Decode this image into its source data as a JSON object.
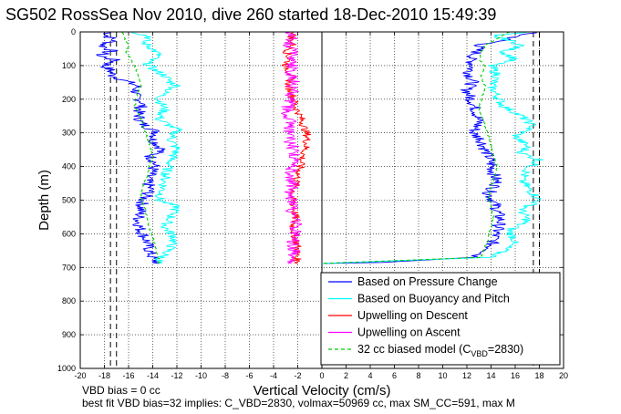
{
  "colors": {
    "pressure": "#0000ff",
    "buoyancy": "#00ffff",
    "descent": "#ff0000",
    "ascent": "#ff00ff",
    "model": "#00cc00",
    "axis": "#000000",
    "grid": "#000000"
  },
  "notes": {
    "bias": "VBD bias = 0 cc",
    "fit": "best fit VBD bias=32 implies: C_VBD=2830, volmax=50969 cc, max SM_CC=591, max M"
  },
  "chart_data": {
    "type": "line",
    "title": "SG502 RossSea Nov 2010, dive 260 started 18-Dec-2010 15:49:39",
    "xlabel": "Vertical Velocity (cm/s)",
    "ylabel": "Depth (m)",
    "xlim": [
      -20,
      20
    ],
    "ylim": [
      0,
      1000
    ],
    "y_reversed": true,
    "grid": true,
    "grid_style": "dotted",
    "legend_position": "bottom-right",
    "xticks": [
      "-20",
      "-18",
      "-16",
      "-14",
      "-12",
      "-10",
      "-8",
      "-6",
      "-4",
      "-2",
      "0",
      "2",
      "4",
      "6",
      "8",
      "10",
      "12",
      "14",
      "16",
      "18",
      "20"
    ],
    "yticks": [
      "0",
      "100",
      "200",
      "300",
      "400",
      "500",
      "600",
      "700",
      "800",
      "900",
      "1000"
    ],
    "reference_lines": [
      {
        "x": -17.5,
        "style": "dashed"
      },
      {
        "x": -17.0,
        "style": "dashed"
      },
      {
        "x": 0,
        "style": "solid"
      },
      {
        "x": 17.5,
        "style": "dashed"
      },
      {
        "x": 18.0,
        "style": "dashed"
      }
    ],
    "legend": [
      {
        "label": "Based on Pressure Change",
        "color_key": "pressure",
        "style": "solid"
      },
      {
        "label": "Based on Buoyancy and Pitch",
        "color_key": "buoyancy",
        "style": "solid"
      },
      {
        "label": "Upwelling on Descent",
        "color_key": "descent",
        "style": "solid"
      },
      {
        "label": "Upwelling on Ascent",
        "color_key": "ascent",
        "style": "solid"
      },
      {
        "label": "32 cc biased model (C",
        "sub": "VBD",
        "tail": "=2830)",
        "color_key": "model",
        "style": "dashed"
      }
    ],
    "series": [
      {
        "name": "Based on Pressure Change",
        "color_key": "pressure",
        "segments": [
          {
            "y": [
              0,
              10,
              25,
              40,
              55,
              70,
              85,
              100,
              115,
              130,
              160,
              190,
              210,
              240,
              270,
              300,
              320,
              350,
              370,
              390,
              410,
              440,
              470,
              500,
              530,
              560,
              590,
              620,
              650,
              675,
              688
            ],
            "x": [
              -17.5,
              -17.8,
              -17.2,
              -18.2,
              -17.4,
              -18.5,
              -17.0,
              -18.0,
              -17.5,
              -17.3,
              -15.3,
              -15.5,
              -14.8,
              -15.2,
              -15.0,
              -13.6,
              -14.0,
              -13.2,
              -14.2,
              -13.8,
              -14.0,
              -14.5,
              -14.2,
              -14.8,
              -15.0,
              -15.2,
              -15.0,
              -14.5,
              -14.3,
              -14.0,
              -13.5
            ]
          },
          {
            "y": [
              0,
              10,
              25,
              40,
              60,
              80,
              100,
              120,
              150,
              170,
              190,
              210,
              240,
              270,
              300,
              320,
              350,
              370,
              390,
              420,
              450,
              480,
              510,
              530,
              560,
              590,
              620,
              650,
              670,
              685,
              688
            ],
            "x": [
              17.5,
              16.5,
              15.0,
              13.0,
              12.8,
              12.3,
              12.5,
              12.2,
              12.5,
              12.0,
              12.2,
              12.5,
              12.8,
              13.0,
              12.5,
              13.2,
              13.5,
              13.8,
              14.0,
              14.2,
              14.5,
              13.8,
              14.3,
              14.5,
              14.8,
              14.5,
              14.2,
              13.8,
              12.5,
              5.0,
              0.0
            ]
          }
        ]
      },
      {
        "name": "Based on Buoyancy and Pitch",
        "color_key": "buoyancy",
        "segments": [
          {
            "y": [
              0,
              15,
              30,
              50,
              70,
              90,
              110,
              130,
              150,
              160,
              180,
              200,
              230,
              260,
              290,
              320,
              350,
              380,
              410,
              440,
              470,
              500,
              520,
              550,
              580,
              610,
              640,
              660,
              680,
              688
            ],
            "x": [
              -15.5,
              -14.2,
              -14.8,
              -14.0,
              -13.5,
              -14.5,
              -14.0,
              -13.0,
              -12.5,
              -12.0,
              -13.0,
              -13.5,
              -13.0,
              -13.5,
              -12.0,
              -12.5,
              -12.0,
              -12.5,
              -12.8,
              -13.0,
              -13.2,
              -13.5,
              -12.0,
              -12.5,
              -13.0,
              -12.2,
              -12.5,
              -13.0,
              -13.5,
              -13.5
            ]
          },
          {
            "y": [
              0,
              10,
              25,
              40,
              60,
              80,
              100,
              130,
              160,
              190,
              220,
              250,
              280,
              310,
              340,
              360,
              380,
              410,
              440,
              470,
              500,
              530,
              560,
              590,
              620,
              650,
              670,
              688
            ],
            "x": [
              17.0,
              14.0,
              15.5,
              16.5,
              15.0,
              16.0,
              14.0,
              14.5,
              14.0,
              14.5,
              15.0,
              16.5,
              17.5,
              16.0,
              17.0,
              16.5,
              18.0,
              17.0,
              16.5,
              17.2,
              18.0,
              16.5,
              17.0,
              15.5,
              16.0,
              15.0,
              14.0,
              0.0
            ]
          }
        ]
      },
      {
        "name": "Upwelling on Descent",
        "color_key": "descent",
        "segments": [
          {
            "y": [
              0,
              20,
              40,
              60,
              80,
              100,
              130,
              160,
              190,
              220,
              250,
              280,
              310,
              340,
              370,
              400,
              430,
              460,
              490,
              520,
              550,
              580,
              610,
              640,
              670,
              688
            ],
            "x": [
              -2.2,
              -2.6,
              -2.4,
              -2.9,
              -2.7,
              -3.0,
              -2.5,
              -2.8,
              -2.4,
              -2.2,
              -1.8,
              -1.5,
              -1.2,
              -1.3,
              -1.6,
              -1.8,
              -2.0,
              -2.2,
              -2.5,
              -2.3,
              -2.2,
              -2.4,
              -2.2,
              -2.0,
              -2.1,
              -2.0
            ]
          }
        ]
      },
      {
        "name": "Upwelling on Ascent",
        "color_key": "ascent",
        "segments": [
          {
            "y": [
              688,
              660,
              630,
              600,
              570,
              540,
              510,
              480,
              450,
              420,
              390,
              360,
              330,
              300,
              270,
              240,
              210,
              180,
              150,
              120,
              90,
              60,
              40,
              20,
              0
            ],
            "x": [
              -2.5,
              -2.2,
              -2.4,
              -2.3,
              -2.1,
              -2.5,
              -2.3,
              -2.7,
              -2.4,
              -2.6,
              -2.3,
              -2.2,
              -2.6,
              -2.8,
              -2.6,
              -2.9,
              -2.7,
              -2.5,
              -2.3,
              -2.6,
              -2.4,
              -2.5,
              -2.7,
              -2.4,
              -2.5
            ]
          }
        ]
      },
      {
        "name": "32 cc biased model (CVBD=2830)",
        "color_key": "model",
        "dashed": true,
        "segments": [
          {
            "y": [
              0,
              20,
              40,
              60,
              80,
              100,
              130,
              160,
              190,
              220,
              250,
              280,
              310,
              340,
              370,
              400,
              430,
              460,
              490,
              520,
              550,
              580,
              610,
              640,
              670,
              688
            ],
            "x": [
              -16.5,
              -16.3,
              -16.0,
              -16.2,
              -15.8,
              -15.5,
              -15.2,
              -15.0,
              -15.3,
              -15.5,
              -15.0,
              -14.8,
              -14.5,
              -14.2,
              -14.0,
              -14.3,
              -14.5,
              -14.8,
              -15.0,
              -14.7,
              -14.5,
              -14.3,
              -14.0,
              -13.8,
              -13.5,
              -13.5
            ]
          },
          {
            "y": [
              0,
              20,
              40,
              60,
              80,
              100,
              130,
              160,
              190,
              220,
              250,
              280,
              310,
              340,
              370,
              400,
              430,
              460,
              490,
              520,
              550,
              580,
              610,
              640,
              670,
              688
            ],
            "x": [
              15.5,
              14.5,
              13.5,
              13.2,
              13.0,
              13.5,
              13.2,
              13.5,
              13.3,
              13.0,
              13.2,
              13.5,
              13.8,
              14.0,
              14.2,
              14.5,
              14.3,
              14.0,
              13.8,
              14.0,
              14.2,
              14.0,
              13.8,
              13.5,
              13.2,
              0.0
            ]
          }
        ]
      }
    ]
  }
}
